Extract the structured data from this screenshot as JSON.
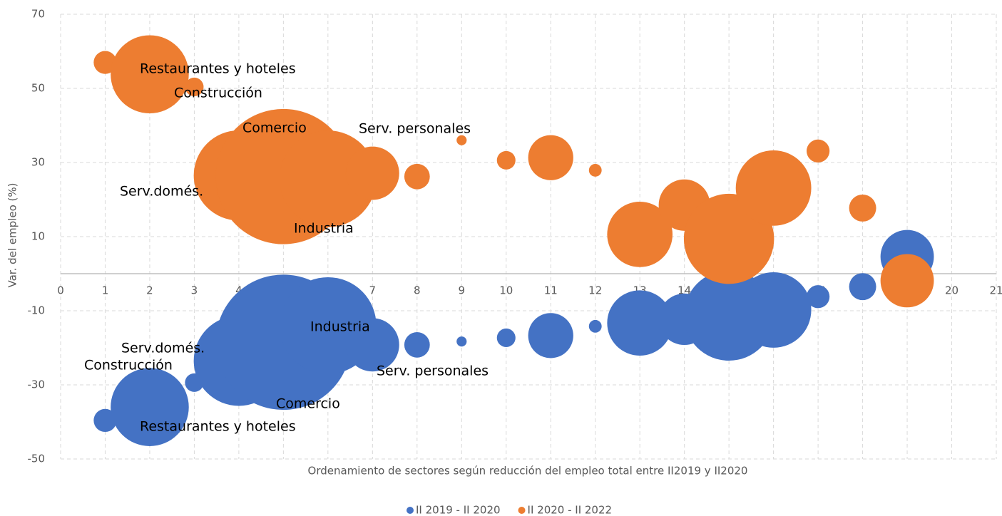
{
  "chart_data": {
    "type": "bubble",
    "x_label": "Ordenamiento  de sectores según reducción del empleo total entre II2019 y II2020",
    "y_label": "Var. del empleo (%)",
    "xlim": [
      0,
      21
    ],
    "xticks": [
      0,
      1,
      2,
      3,
      4,
      5,
      6,
      7,
      8,
      9,
      10,
      11,
      12,
      13,
      14,
      15,
      16,
      17,
      18,
      19,
      20,
      21
    ],
    "ylim": [
      -50,
      70
    ],
    "yticks": [
      70,
      50,
      30,
      10,
      -10,
      -30,
      -50
    ],
    "grid": true,
    "legend": "bottom",
    "x": [
      1,
      2,
      3,
      4,
      5,
      6,
      7,
      8,
      9,
      10,
      11,
      12,
      13,
      14,
      15,
      16,
      17,
      18,
      19
    ],
    "series": [
      {
        "name": "II 2019 - II 2020",
        "color": "#4472c4",
        "values": [
          -39.6,
          -36,
          -29.4,
          -23.5,
          -18.5,
          -14,
          -19.2,
          -19.2,
          -18.3,
          -17.3,
          -16.7,
          -14.2,
          -13.3,
          -12.3,
          -11.3,
          -9.8,
          -6.2,
          -3.5,
          4.6
        ],
        "sizes": [
          2.6,
          30,
          1.7,
          40,
          90,
          46,
          14,
          3.2,
          0.5,
          1.7,
          10,
          0.8,
          21,
          13,
          40,
          28,
          2.6,
          3.6,
          14
        ]
      },
      {
        "name": "II 2020 - II 2022",
        "color": "#ed7d31",
        "values": [
          57,
          53.8,
          50.4,
          26.5,
          26.2,
          25.6,
          27.1,
          26.2,
          36,
          30.6,
          31.3,
          27.9,
          10.6,
          18.5,
          9.4,
          23.1,
          33.1,
          17.7,
          -1.9
        ],
        "sizes": [
          2.6,
          30,
          1.7,
          40,
          90,
          46,
          14,
          3.2,
          0.5,
          1.7,
          10,
          0.8,
          21,
          13,
          40,
          28,
          2.6,
          3.6,
          14
        ]
      }
    ],
    "annotations": [
      "Restaurantes y hoteles",
      "Construcción",
      "Comercio",
      "Serv. personales",
      "Serv.domés.",
      "Industria",
      "Serv.domés.",
      "Construcción",
      "Industria",
      "Serv. personales",
      "Comercio",
      "Restaurantes y hoteles"
    ]
  }
}
